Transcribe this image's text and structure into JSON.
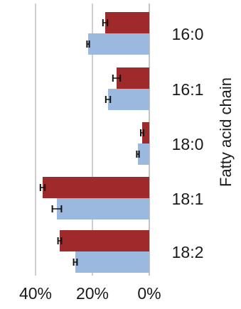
{
  "chart_data": {
    "type": "bar",
    "orientation": "horizontal",
    "x_reversed": true,
    "ylabel": "Fatty acid chain",
    "xlabel": "",
    "xlim": [
      0,
      45
    ],
    "xticks": [
      40,
      20,
      0
    ],
    "xtick_labels": [
      "40%",
      "20%",
      "0%"
    ],
    "grid": true,
    "legend": "none",
    "categories": [
      "16:0",
      "16:1",
      "18:0",
      "18:1",
      "18:2"
    ],
    "series": [
      {
        "color": "#9e2a2b",
        "values": [
          15.5,
          11.5,
          2.5,
          37.5,
          31.5
        ],
        "errors": [
          0.8,
          1.3,
          0.5,
          0.8,
          0.6
        ]
      },
      {
        "color": "#9bb8de",
        "values": [
          21.5,
          14.5,
          4.0,
          32.5,
          26.0
        ],
        "errors": [
          0.4,
          0.8,
          0.4,
          1.6,
          0.6
        ]
      }
    ]
  }
}
